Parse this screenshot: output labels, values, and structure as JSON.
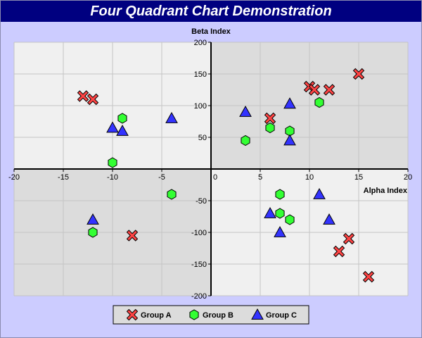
{
  "chart_data": {
    "type": "scatter",
    "title": "Four Quadrant Chart Demonstration",
    "xlabel": "Alpha Index",
    "ylabel": "Beta Index",
    "xlim": [
      -20,
      20
    ],
    "ylim": [
      -200,
      200
    ],
    "x_ticks": [
      -20,
      -15,
      -10,
      -5,
      0,
      5,
      10,
      15,
      20
    ],
    "y_ticks": [
      -200,
      -150,
      -100,
      -50,
      0,
      50,
      100,
      150,
      200
    ],
    "grid": true,
    "legend_position": "bottom",
    "quadrant_colors": {
      "light": "#f0f0f0",
      "dark": "#dcdcdc"
    },
    "series": [
      {
        "name": "Group A",
        "marker": "cross",
        "color": "#ff4444",
        "points": [
          [
            -13,
            115
          ],
          [
            -12,
            110
          ],
          [
            -8,
            -105
          ],
          [
            6,
            80
          ],
          [
            10,
            130
          ],
          [
            10.5,
            125
          ],
          [
            12,
            125
          ],
          [
            15,
            150
          ],
          [
            13,
            -130
          ],
          [
            14,
            -110
          ],
          [
            16,
            -170
          ]
        ]
      },
      {
        "name": "Group B",
        "marker": "hexagon",
        "color": "#33ff33",
        "points": [
          [
            -10,
            10
          ],
          [
            -9,
            80
          ],
          [
            -4,
            -40
          ],
          [
            -12,
            -100
          ],
          [
            3.5,
            45
          ],
          [
            6,
            65
          ],
          [
            8,
            60
          ],
          [
            11,
            105
          ],
          [
            7,
            -40
          ],
          [
            7,
            -70
          ],
          [
            8,
            -80
          ]
        ]
      },
      {
        "name": "Group C",
        "marker": "triangle",
        "color": "#3333ff",
        "points": [
          [
            -10,
            65
          ],
          [
            -9,
            60
          ],
          [
            -4,
            80
          ],
          [
            -12,
            -80
          ],
          [
            3.5,
            90
          ],
          [
            8,
            103
          ],
          [
            8,
            45
          ],
          [
            6,
            -70
          ],
          [
            7,
            -100
          ],
          [
            11,
            -40
          ],
          [
            12,
            -80
          ]
        ]
      }
    ]
  }
}
